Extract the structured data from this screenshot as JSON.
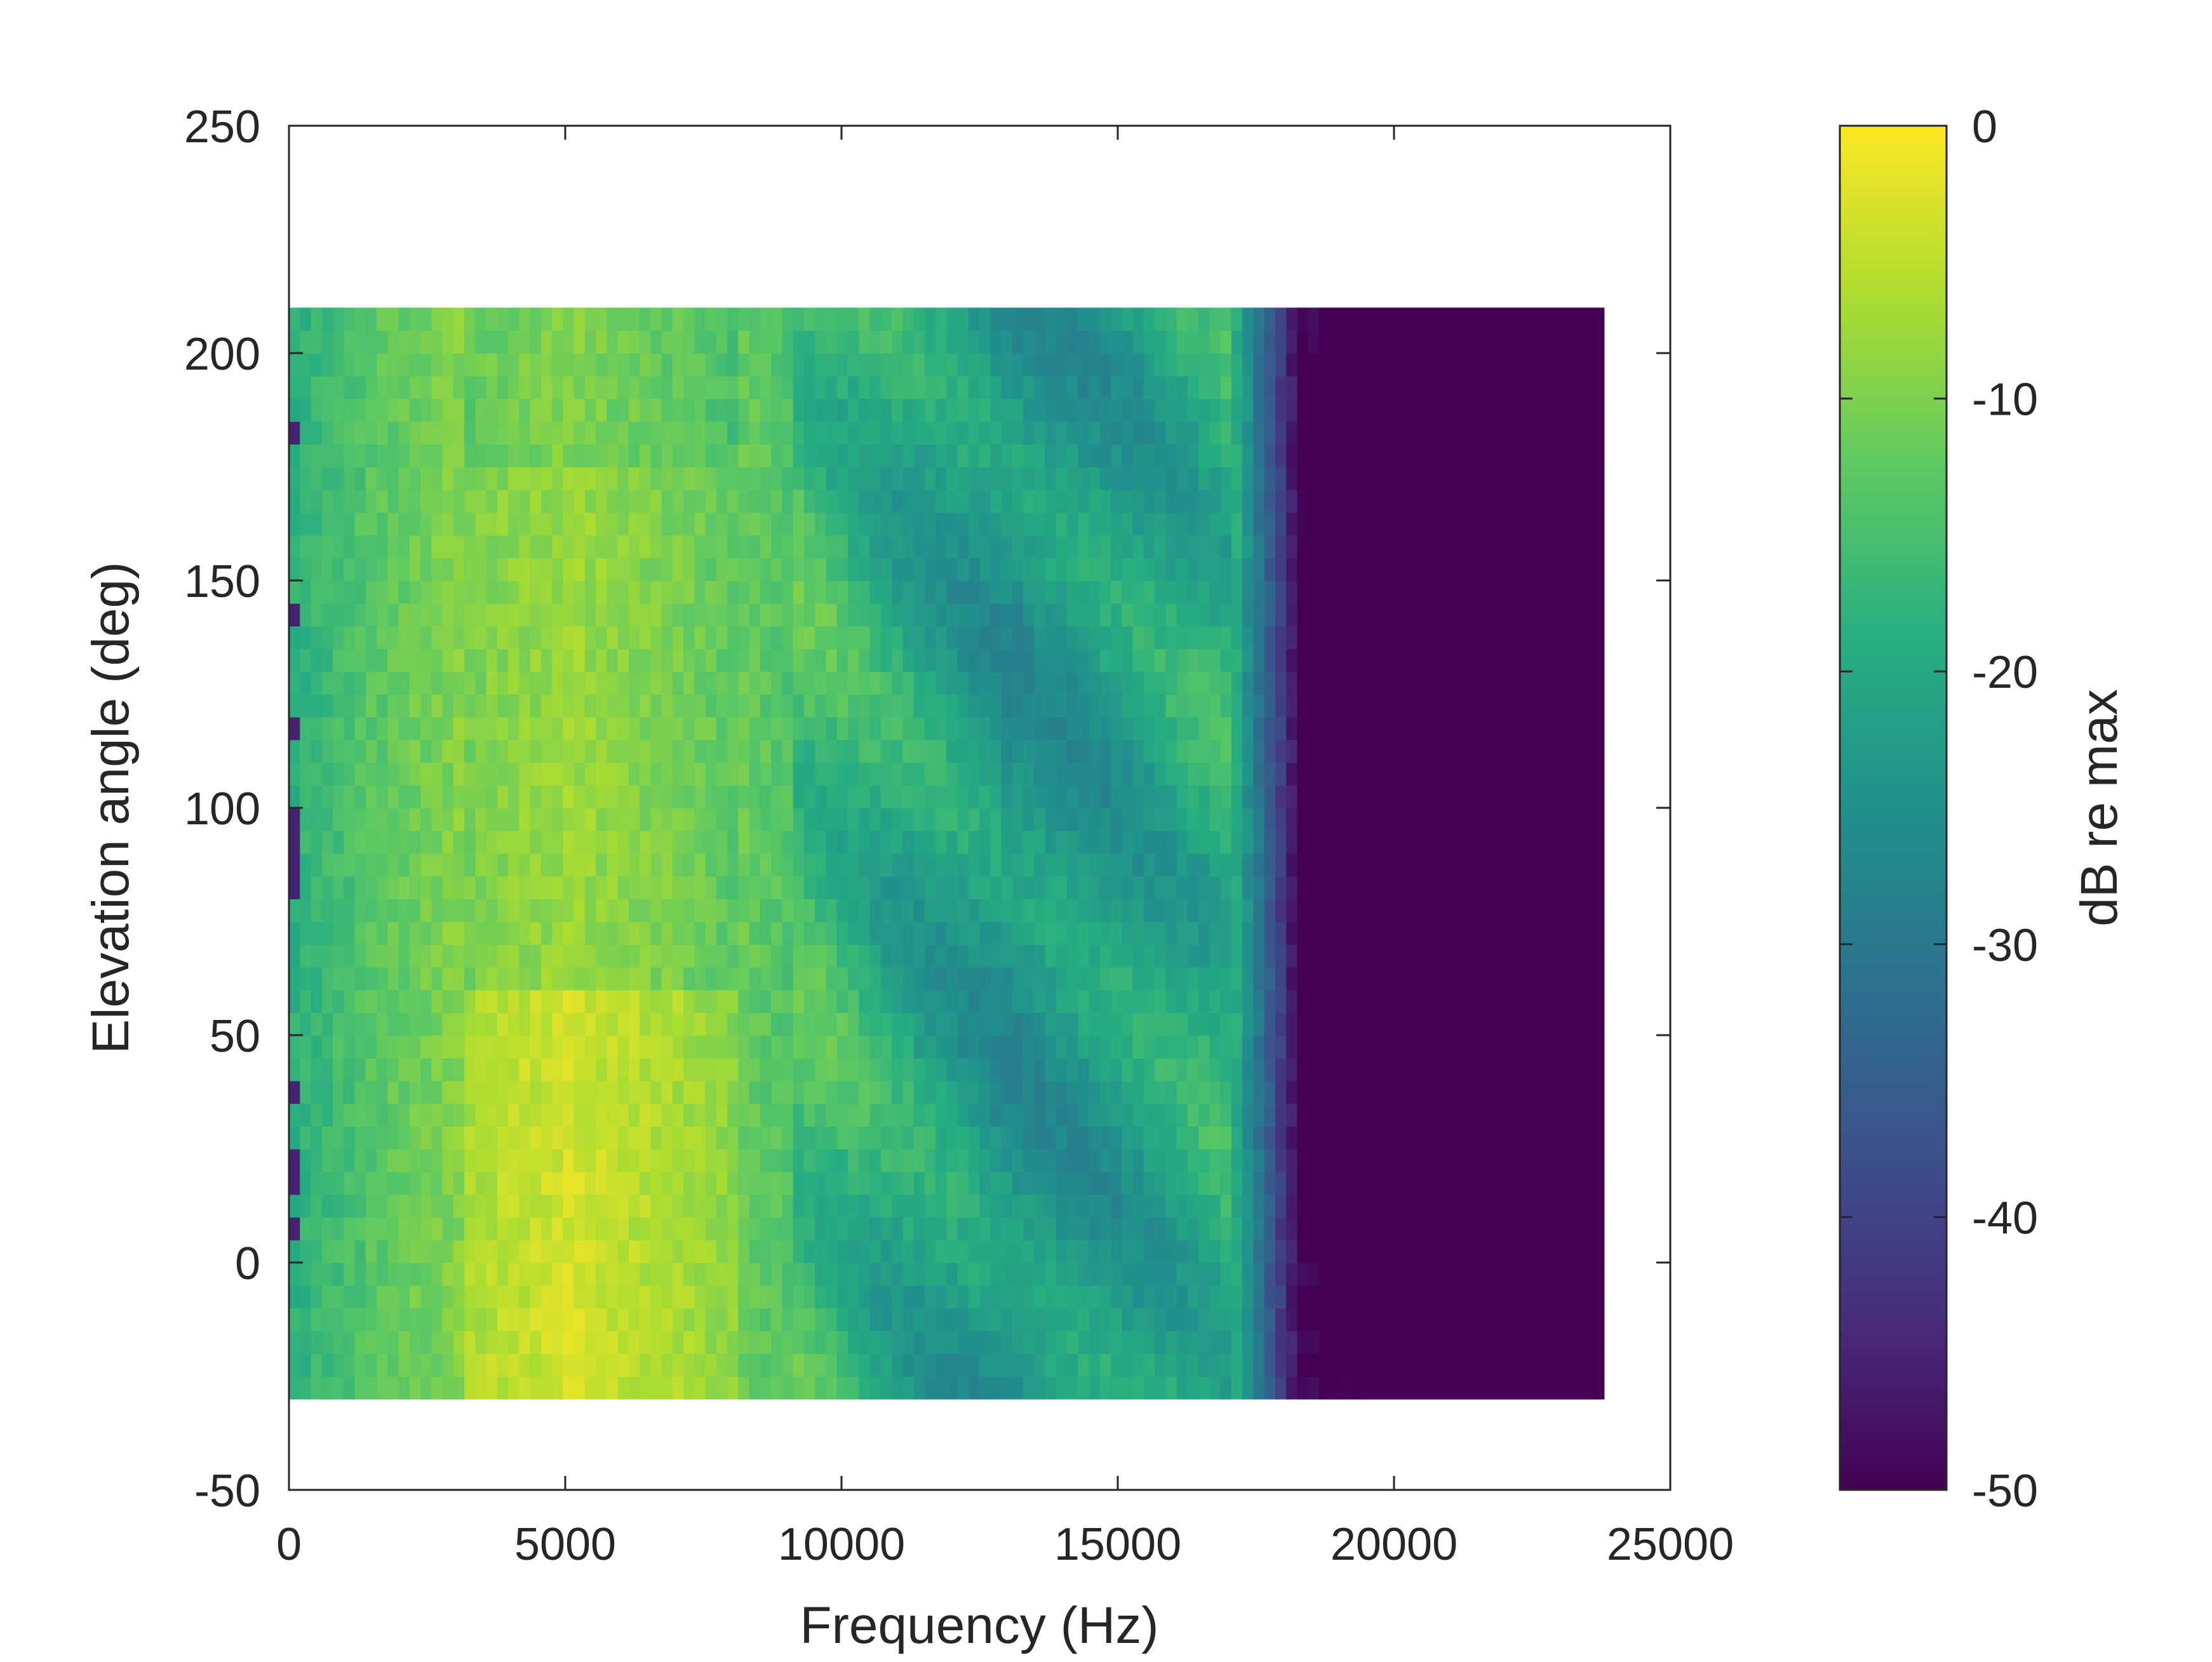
{
  "chart_data": {
    "type": "heatmap",
    "title": "",
    "xlabel": "Frequency (Hz)",
    "ylabel": "Elevation angle (deg)",
    "xlim": [
      0,
      25000
    ],
    "ylim": [
      -50,
      250
    ],
    "x_ticks": [
      "0",
      "5000",
      "10000",
      "15000",
      "20000",
      "25000"
    ],
    "y_ticks": [
      "-50",
      "0",
      "50",
      "100",
      "150",
      "200",
      "250"
    ],
    "data_extent": {
      "x": [
        0,
        23800
      ],
      "y": [
        -30,
        210
      ]
    },
    "elevation_rows": 48,
    "frequency_columns": 120,
    "colormap": "viridis",
    "colorbar": {
      "label": "dB re max",
      "range": [
        -50,
        0
      ],
      "ticks": [
        "0",
        "-10",
        "-20",
        "-30",
        "-40",
        "-50"
      ]
    },
    "cutoff_frequency_hz": 18200,
    "level_profile_db": [
      {
        "freq_hz": 0,
        "level_db": -18
      },
      {
        "freq_hz": 1500,
        "level_db": -13
      },
      {
        "freq_hz": 3500,
        "level_db": -8
      },
      {
        "freq_hz": 5000,
        "level_db": -6
      },
      {
        "freq_hz": 7000,
        "level_db": -9
      },
      {
        "freq_hz": 9000,
        "level_db": -14
      },
      {
        "freq_hz": 11000,
        "level_db": -20
      },
      {
        "freq_hz": 13000,
        "level_db": -24
      },
      {
        "freq_hz": 15000,
        "level_db": -22
      },
      {
        "freq_hz": 17000,
        "level_db": -18
      },
      {
        "freq_hz": 18200,
        "level_db": -50
      },
      {
        "freq_hz": 23800,
        "level_db": -50
      }
    ]
  }
}
